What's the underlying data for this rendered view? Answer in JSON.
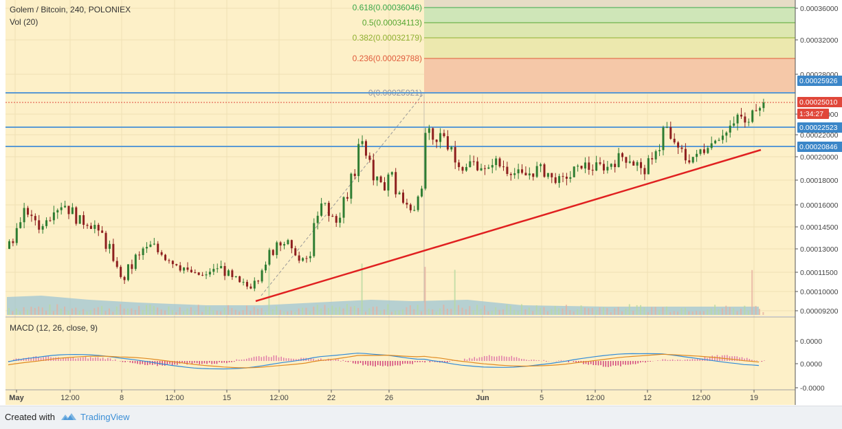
{
  "chart_data": {
    "type": "candlestick",
    "title": "Golem / Bitcoin, 240, POLONIEX",
    "volume_label": "Vol (20)",
    "macd_label": "MACD (12, 26, close, 9)",
    "x_labels": [
      "May",
      "12:00",
      "8",
      "12:00",
      "15",
      "12:00",
      "22",
      "26",
      "Jun",
      "5",
      "12:00",
      "12",
      "12:00",
      "19"
    ],
    "y_ticks": [
      "0.00036000",
      "0.00032000",
      "0.00028000",
      "0.00024000",
      "0.00022000",
      "0.00020000",
      "0.00018000",
      "0.00016000",
      "0.00014500",
      "0.00013000",
      "0.00011500",
      "0.00010000",
      "0.00009200"
    ],
    "macd_ticks": [
      "0.0000",
      "0.0000",
      "-0.0000"
    ],
    "fib_levels": [
      {
        "label": "0.618(0.00036046)",
        "color": "#3aa84a"
      },
      {
        "label": "0.5(0.00034113)",
        "color": "#55a630"
      },
      {
        "label": "0.382(0.00032179)",
        "color": "#8fb030"
      },
      {
        "label": "0.236(0.00029788)",
        "color": "#e05a3a"
      },
      {
        "label": "0(0.00025921)",
        "color": "#9090a0"
      }
    ],
    "price_labels": [
      {
        "text": "0.00025926",
        "color": "#3b86c8"
      },
      {
        "text": "0.00025010",
        "color": "#e0473a"
      },
      {
        "text": "1:34:27",
        "color": "#e0473a"
      },
      {
        "text": "0.00022523",
        "color": "#3b86c8"
      },
      {
        "text": "0.00020846",
        "color": "#3b86c8"
      }
    ],
    "close_series": [
      0.000134,
      0.000147,
      0.000155,
      0.00015,
      0.000145,
      0.000152,
      0.000158,
      0.00016,
      0.000156,
      0.00015,
      0.000148,
      0.000146,
      0.00014,
      0.000132,
      0.00012,
      0.00011,
      0.000118,
      0.000125,
      0.00013,
      0.000132,
      0.000128,
      0.000124,
      0.000121,
      0.000118,
      0.000115,
      0.000113,
      0.000112,
      0.000116,
      0.000118,
      0.000114,
      0.00011,
      0.000106,
      0.000104,
      0.00011,
      0.000118,
      0.000128,
      0.000135,
      0.000134,
      0.000128,
      0.000122,
      0.000124,
      0.00015,
      0.00016,
      0.000152,
      0.00015,
      0.000165,
      0.000185,
      0.000215,
      0.0002,
      0.00018,
      0.000175,
      0.000185,
      0.00017,
      0.00016,
      0.000158,
      0.00017,
      0.000222,
      0.000212,
      0.00022,
      0.00021,
      0.000195,
      0.00019,
      0.000195,
      0.000192,
      0.000188,
      0.000196,
      0.000192,
      0.000188,
      0.000186,
      0.000184,
      0.000186,
      0.00019,
      0.000186,
      0.000181,
      0.00018,
      0.000183,
      0.000189,
      0.000193,
      0.00019,
      0.000192,
      0.000191,
      0.000195,
      0.0002,
      0.000198,
      0.000194,
      0.000188,
      0.000195,
      0.000208,
      0.000226,
      0.000214,
      0.000205,
      0.000198,
      0.0002,
      0.000206,
      0.000212,
      0.000218,
      0.000222,
      0.000228,
      0.000238,
      0.00023,
      0.000248,
      0.00025
    ]
  },
  "footer": {
    "created_with": "Created with",
    "brand": "TradingView"
  }
}
